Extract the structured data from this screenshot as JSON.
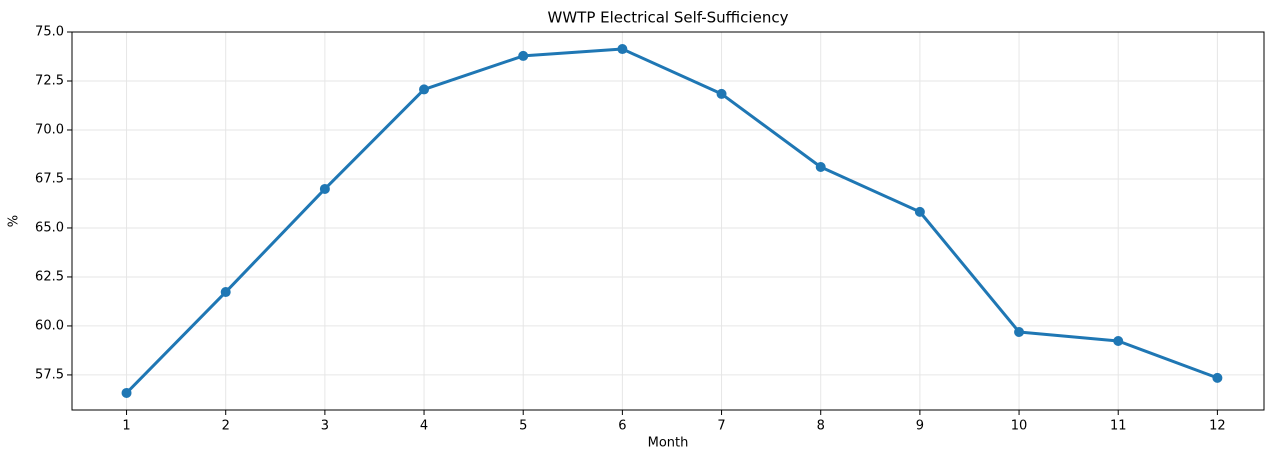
{
  "chart_data": {
    "type": "line",
    "title": "WWTP Electrical Self-Sufficiency",
    "x_label": "Month",
    "y_label": "%",
    "x": [
      1,
      2,
      3,
      4,
      5,
      6,
      7,
      8,
      9,
      10,
      11,
      12
    ],
    "series": [
      {
        "name": "Self-Sufficiency",
        "color": "#1f77b4",
        "values": [
          56.58,
          61.73,
          66.99,
          72.07,
          73.78,
          74.13,
          71.84,
          68.11,
          65.82,
          59.69,
          59.23,
          57.35
        ]
      }
    ],
    "xlim": [
      0.45,
      12.47
    ],
    "xticks": [
      1,
      2,
      3,
      4,
      5,
      6,
      7,
      8,
      9,
      10,
      11,
      12
    ],
    "ylim": [
      55.71,
      75
    ],
    "yticks": [
      57.5,
      {
        "value": 60,
        "label": "60.0"
      },
      62.5,
      {
        "value": 65,
        "label": "65.0"
      },
      67.5,
      {
        "value": 70,
        "label": "70.0"
      },
      72.5,
      {
        "value": 75,
        "label": "75.0"
      }
    ],
    "grid": true,
    "legend": false
  }
}
